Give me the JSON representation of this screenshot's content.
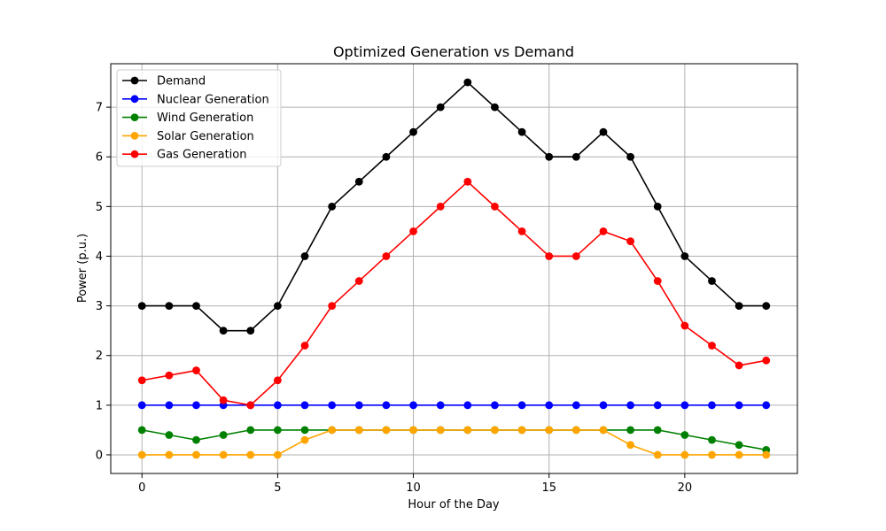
{
  "chart_data": {
    "type": "line",
    "title": "Optimized Generation vs Demand",
    "xlabel": "Hour of the Day",
    "ylabel": "Power (p.u.)",
    "x": [
      0,
      1,
      2,
      3,
      4,
      5,
      6,
      7,
      8,
      9,
      10,
      11,
      12,
      13,
      14,
      15,
      16,
      17,
      18,
      19,
      20,
      21,
      22,
      23
    ],
    "xlim": [
      -1.15,
      24.15
    ],
    "ylim": [
      -0.375,
      7.875
    ],
    "xticks": [
      0,
      5,
      10,
      15,
      20
    ],
    "yticks": [
      0,
      1,
      2,
      3,
      4,
      5,
      6,
      7
    ],
    "grid": true,
    "legend_position": "top-left",
    "series": [
      {
        "name": "Demand",
        "color": "#000000",
        "values": [
          3,
          3,
          3,
          2.5,
          2.5,
          3,
          4,
          5,
          5.5,
          6,
          6.5,
          7,
          7.5,
          7,
          6.5,
          6,
          6,
          6.5,
          6,
          5,
          4,
          3.5,
          3,
          3
        ]
      },
      {
        "name": "Nuclear Generation",
        "color": "#0000ff",
        "values": [
          1,
          1,
          1,
          1,
          1,
          1,
          1,
          1,
          1,
          1,
          1,
          1,
          1,
          1,
          1,
          1,
          1,
          1,
          1,
          1,
          1,
          1,
          1,
          1
        ]
      },
      {
        "name": "Wind Generation",
        "color": "#008000",
        "values": [
          0.5,
          0.4,
          0.3,
          0.4,
          0.5,
          0.5,
          0.5,
          0.5,
          0.5,
          0.5,
          0.5,
          0.5,
          0.5,
          0.5,
          0.5,
          0.5,
          0.5,
          0.5,
          0.5,
          0.5,
          0.4,
          0.3,
          0.2,
          0.1
        ]
      },
      {
        "name": "Solar Generation",
        "color": "#ffa500",
        "values": [
          0,
          0,
          0,
          0,
          0,
          0,
          0.3,
          0.5,
          0.5,
          0.5,
          0.5,
          0.5,
          0.5,
          0.5,
          0.5,
          0.5,
          0.5,
          0.5,
          0.2,
          0,
          0,
          0,
          0,
          0
        ]
      },
      {
        "name": "Gas Generation",
        "color": "#ff0000",
        "values": [
          1.5,
          1.6,
          1.7,
          1.1,
          1.0,
          1.5,
          2.2,
          3.0,
          3.5,
          4.0,
          4.5,
          5.0,
          5.5,
          5.0,
          4.5,
          4.0,
          4.0,
          4.5,
          4.3,
          3.5,
          2.6,
          2.2,
          1.8,
          1.9
        ]
      }
    ]
  }
}
